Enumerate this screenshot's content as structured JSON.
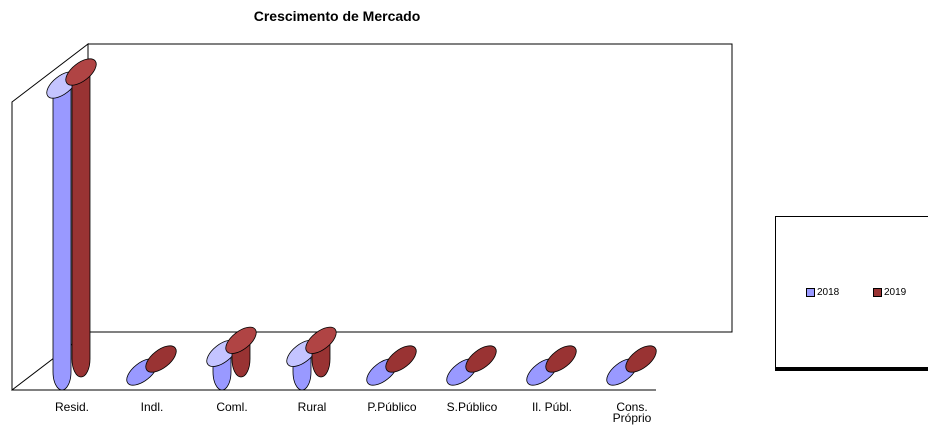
{
  "chart_data": {
    "type": "bar",
    "title": "Crescimento de Mercado",
    "categories": [
      "Resid.",
      "Indl.",
      "Coml.",
      "Rural",
      "P.Público",
      "S.Público",
      "Il. Públ.",
      "Cons. Próprio"
    ],
    "series": [
      {
        "name": "2018",
        "values": [
          100,
          0,
          6.5,
          6.5,
          0,
          0,
          0,
          0
        ]
      },
      {
        "name": "2019",
        "values": [
          100,
          0,
          6.5,
          6.5,
          0,
          0,
          0,
          0
        ]
      }
    ],
    "ylim": [
      0,
      100
    ],
    "legend_position": "right",
    "grid": false
  },
  "colors": {
    "series_2018": "#9999ff",
    "series_2018_dark": "#6c6cd6",
    "series_2018_top": "#c4c4ff",
    "series_2019": "#993333",
    "series_2019_dark": "#6f2020",
    "series_2019_top": "#b04444"
  }
}
